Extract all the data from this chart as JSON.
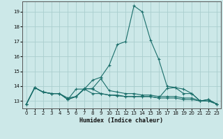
{
  "xlabel": "Humidex (Indice chaleur)",
  "background_color": "#cce8e8",
  "grid_color": "#aacece",
  "line_color": "#1a6e6a",
  "xlim": [
    -0.5,
    23.5
  ],
  "ylim": [
    12.5,
    19.7
  ],
  "yticks": [
    13,
    14,
    15,
    16,
    17,
    18,
    19
  ],
  "xticks": [
    0,
    1,
    2,
    3,
    4,
    5,
    6,
    7,
    8,
    9,
    10,
    11,
    12,
    13,
    14,
    15,
    16,
    17,
    18,
    19,
    20,
    21,
    22,
    23
  ],
  "series": [
    [
      12.8,
      13.9,
      13.6,
      13.5,
      13.5,
      13.1,
      13.3,
      13.8,
      14.4,
      14.6,
      15.4,
      16.8,
      17.0,
      19.4,
      19.0,
      17.1,
      15.8,
      14.0,
      13.9,
      13.8,
      13.5,
      13.0,
      13.1,
      12.8
    ],
    [
      12.8,
      13.9,
      13.6,
      13.5,
      13.5,
      13.1,
      13.3,
      13.8,
      13.5,
      13.5,
      13.4,
      13.4,
      13.3,
      13.3,
      13.3,
      13.3,
      13.2,
      13.2,
      13.2,
      13.1,
      13.1,
      13.0,
      13.0,
      12.8
    ],
    [
      12.8,
      13.9,
      13.6,
      13.5,
      13.5,
      13.2,
      13.3,
      13.85,
      13.8,
      13.5,
      13.4,
      13.35,
      13.3,
      13.3,
      13.3,
      13.3,
      13.2,
      13.85,
      13.9,
      13.5,
      13.5,
      13.0,
      13.0,
      12.8
    ],
    [
      12.8,
      13.9,
      13.6,
      13.5,
      13.5,
      13.1,
      13.8,
      13.8,
      13.85,
      14.5,
      13.7,
      13.6,
      13.5,
      13.5,
      13.4,
      13.4,
      13.3,
      13.3,
      13.3,
      13.2,
      13.2,
      13.0,
      13.1,
      12.8
    ]
  ]
}
